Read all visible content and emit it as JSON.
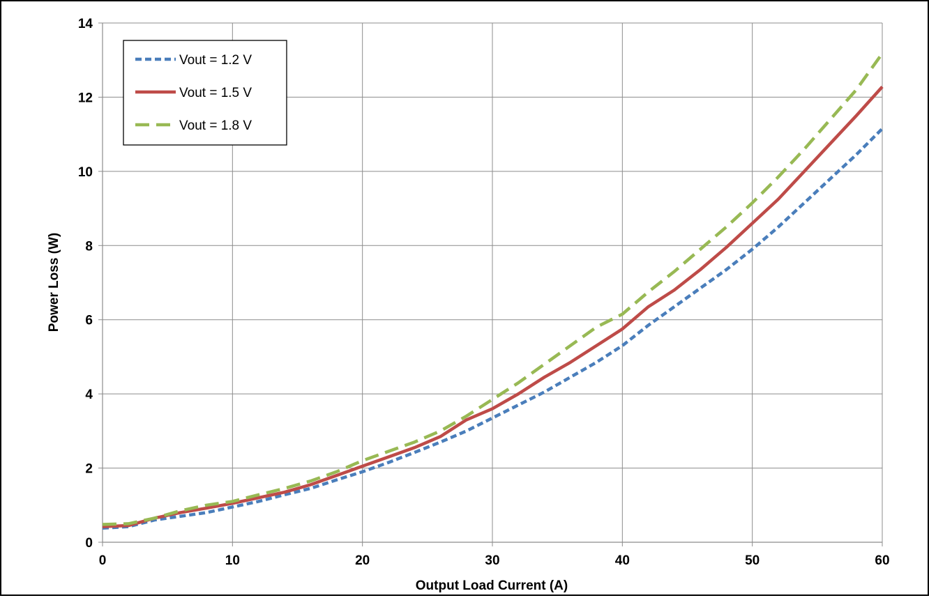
{
  "chart_data": {
    "type": "line",
    "title": "",
    "xlabel": "Output Load Current (A)",
    "ylabel": "Power Loss (W)",
    "xlim": [
      0,
      60
    ],
    "ylim": [
      0,
      14
    ],
    "xticks": [
      0,
      10,
      20,
      30,
      40,
      50,
      60
    ],
    "yticks": [
      0,
      2,
      4,
      6,
      8,
      10,
      12,
      14
    ],
    "xtick_labels": [
      "0",
      "10",
      "20",
      "30",
      "40",
      "50",
      "60"
    ],
    "ytick_labels": [
      "0",
      "2",
      "4",
      "6",
      "8",
      "10",
      "12",
      "14"
    ],
    "grid": true,
    "legend_position": "top-left",
    "series": [
      {
        "name": "Vout = 1.2 V",
        "color": "#4a7ebb",
        "dash": "dotted",
        "x": [
          0,
          2,
          4,
          6,
          8,
          10,
          12,
          14,
          16,
          18,
          20,
          22,
          24,
          26,
          28,
          30,
          32,
          34,
          36,
          38,
          40,
          42,
          44,
          46,
          48,
          50,
          52,
          54,
          56,
          58,
          60
        ],
        "y": [
          0.38,
          0.42,
          0.6,
          0.7,
          0.8,
          0.95,
          1.1,
          1.28,
          1.45,
          1.68,
          1.9,
          2.15,
          2.42,
          2.7,
          3.0,
          3.35,
          3.7,
          4.05,
          4.45,
          4.85,
          5.3,
          5.85,
          6.35,
          6.85,
          7.35,
          7.9,
          8.5,
          9.15,
          9.8,
          10.45,
          11.15
        ]
      },
      {
        "name": "Vout = 1.5 V",
        "color": "#be4b48",
        "dash": "solid",
        "x": [
          0,
          2,
          4,
          6,
          8,
          10,
          12,
          14,
          16,
          18,
          20,
          22,
          24,
          26,
          28,
          30,
          32,
          34,
          36,
          38,
          40,
          42,
          44,
          46,
          48,
          50,
          52,
          54,
          56,
          58,
          60
        ],
        "y": [
          0.42,
          0.45,
          0.65,
          0.8,
          0.92,
          1.05,
          1.2,
          1.35,
          1.55,
          1.8,
          2.05,
          2.3,
          2.55,
          2.85,
          3.3,
          3.6,
          4.0,
          4.45,
          4.85,
          5.3,
          5.75,
          6.35,
          6.8,
          7.35,
          7.95,
          8.6,
          9.25,
          10.0,
          10.75,
          11.5,
          12.28
        ]
      },
      {
        "name": "Vout = 1.8 V",
        "color": "#98b954",
        "dash": "dashed",
        "x": [
          0,
          2,
          4,
          6,
          8,
          10,
          12,
          14,
          16,
          18,
          20,
          22,
          24,
          26,
          28,
          30,
          32,
          34,
          36,
          38,
          40,
          42,
          44,
          46,
          48,
          50,
          52,
          54,
          56,
          58,
          60
        ],
        "y": [
          0.48,
          0.5,
          0.65,
          0.85,
          1.0,
          1.1,
          1.28,
          1.45,
          1.65,
          1.9,
          2.2,
          2.45,
          2.7,
          3.0,
          3.4,
          3.85,
          4.3,
          4.8,
          5.3,
          5.8,
          6.15,
          6.75,
          7.3,
          7.9,
          8.5,
          9.15,
          9.85,
          10.6,
          11.4,
          12.2,
          13.18
        ]
      }
    ]
  }
}
